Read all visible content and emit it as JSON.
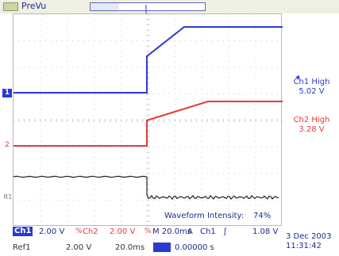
{
  "header": {
    "prevu_label": "PreVu"
  },
  "markers": {
    "trigger_letter": "T",
    "ch1": "1",
    "ch2": "2",
    "r1": "R1"
  },
  "measurements": {
    "ch1_label": "Ch1 High",
    "ch1_value": "5.02 V",
    "ch2_label": "Ch2 High",
    "ch2_value": "3.28 V",
    "ch1_arrow": "◂"
  },
  "display": {
    "intensity_label": "Waveform Intensity:",
    "intensity_value": "74%"
  },
  "settings": {
    "ch1_tag": "Ch1",
    "ch1_scale": "2.00 V",
    "ch2_bw": "%",
    "ch2_tag": "Ch2",
    "ch2_scale": "2.00 V",
    "ch2_bw2": "%",
    "timebase": "M 20.0ms",
    "acq_mode": "A",
    "trig_source": "Ch1",
    "trig_slope": "ʃ",
    "trig_level": "1.08 V",
    "ref1_tag": "Ref1",
    "ref1_scale": "2.00 V",
    "ref1_time": "20.0ms",
    "trig_pos": "0.00000 s",
    "date": "3 Dec 2003",
    "time": "11:31:42"
  },
  "colors": {
    "ch1": "#2a3ad0",
    "ch2": "#e23b3b",
    "ref1": "#222222",
    "grid": "#c8c8c8"
  }
}
